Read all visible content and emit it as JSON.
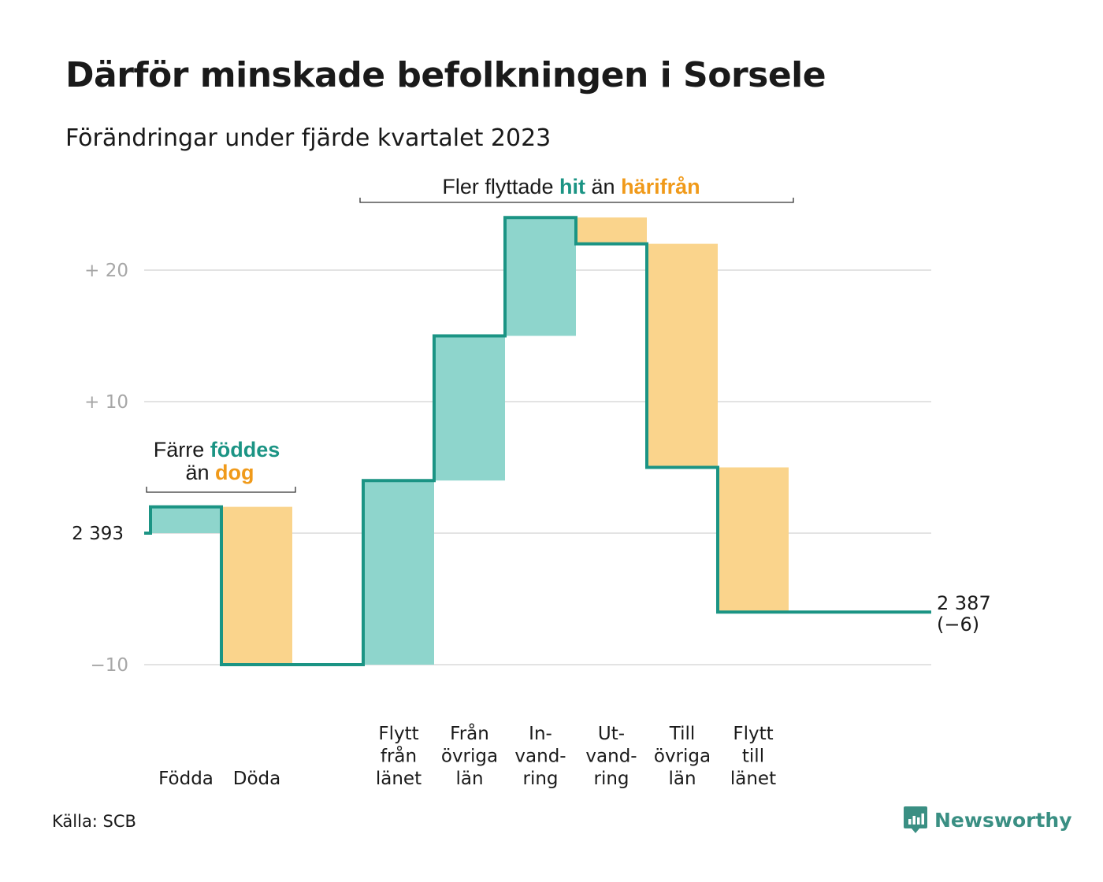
{
  "title": "Därför minskade befolkningen i Sorsele",
  "subtitle": "Förändringar under fjärde kvartalet 2023",
  "source": "Källa: SCB",
  "brand": {
    "name": "Newsworthy",
    "icon": "newsworthy-logo-icon"
  },
  "colors": {
    "increase": "#8ed5cc",
    "decrease": "#fad48c",
    "line": "#1b9484",
    "hit": "#1b9484",
    "harifran": "#f09a1a",
    "grid": "#e3e3e3",
    "tick": "#a6a6a6"
  },
  "annotations": {
    "births": {
      "line1_prefix": "Färre",
      "line1_accent": "föddes",
      "line2_prefix": "än",
      "line2_accent": "dog"
    },
    "migration": {
      "prefix": "Fler flyttade",
      "accent1": "hit",
      "middle": "än",
      "accent2": "härifrån"
    }
  },
  "chart_data": {
    "type": "waterfall",
    "title": "Därför minskade befolkningen i Sorsele",
    "subtitle": "Förändringar under fjärde kvartalet 2023",
    "start_label": "2 393",
    "start_value": 0,
    "end_label": [
      "2 387",
      "(−6)"
    ],
    "y_ticks": [
      {
        "value": 20,
        "label": "+ 20"
      },
      {
        "value": 10,
        "label": "+ 10"
      },
      {
        "value": 0,
        "label": "2 393"
      },
      {
        "value": -10,
        "label": "−10"
      }
    ],
    "ylim": [
      -10,
      24
    ],
    "grid": true,
    "steps": [
      {
        "category": [
          "Födda"
        ],
        "change": 2
      },
      {
        "category": [
          "Döda"
        ],
        "change": -12
      },
      {
        "category": [],
        "change": 0
      },
      {
        "category": [
          "Flytt",
          "från",
          "länet"
        ],
        "change": 14
      },
      {
        "category": [
          "Från",
          "övriga",
          "län"
        ],
        "change": 11
      },
      {
        "category": [
          "In-",
          "vand-",
          "ring"
        ],
        "change": 9
      },
      {
        "category": [
          "Ut-",
          "vand-",
          "ring"
        ],
        "change": -2
      },
      {
        "category": [
          "Till",
          "övriga",
          "län"
        ],
        "change": -17
      },
      {
        "category": [
          "Flytt",
          "till",
          "länet"
        ],
        "change": -11
      }
    ],
    "end_value": -6
  }
}
